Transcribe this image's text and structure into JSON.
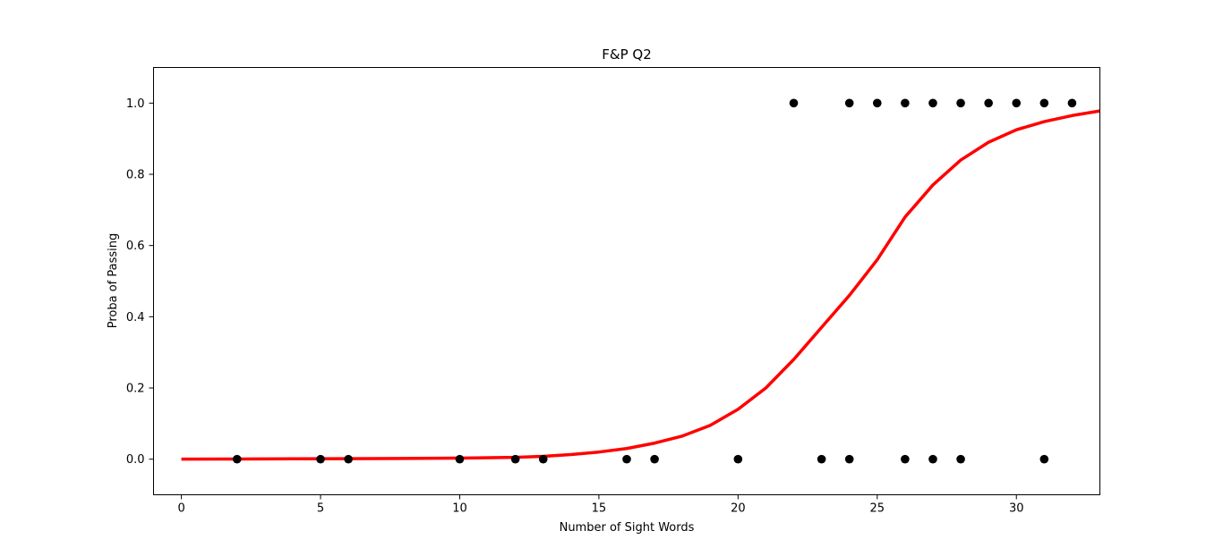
{
  "chart_data": {
    "type": "scatter",
    "title": "F&P Q2",
    "xlabel": "Number of Sight Words",
    "ylabel": "Proba of Passing",
    "xlim": [
      -1,
      33
    ],
    "ylim": [
      -0.1,
      1.1
    ],
    "xticks": [
      "0",
      "5",
      "10",
      "15",
      "20",
      "25",
      "30"
    ],
    "yticks": [
      "0.0",
      "0.2",
      "0.4",
      "0.6",
      "0.8",
      "1.0"
    ],
    "grid": false,
    "legend": "none",
    "colors": {
      "points": "#000000",
      "curve": "#ff0000"
    },
    "series": [
      {
        "kind": "scatter",
        "points": [
          [
            2,
            0
          ],
          [
            5,
            0
          ],
          [
            6,
            0
          ],
          [
            10,
            0
          ],
          [
            12,
            0
          ],
          [
            13,
            0
          ],
          [
            16,
            0
          ],
          [
            17,
            0
          ],
          [
            20,
            0
          ],
          [
            23,
            0
          ],
          [
            24,
            0
          ],
          [
            26,
            0
          ],
          [
            27,
            0
          ],
          [
            28,
            0
          ],
          [
            31,
            0
          ],
          [
            22,
            1
          ],
          [
            24,
            1
          ],
          [
            25,
            1
          ],
          [
            26,
            1
          ],
          [
            27,
            1
          ],
          [
            28,
            1
          ],
          [
            29,
            1
          ],
          [
            30,
            1
          ],
          [
            31,
            1
          ],
          [
            32,
            1
          ]
        ]
      },
      {
        "kind": "line",
        "x": [
          0,
          2,
          4,
          6,
          8,
          10,
          12,
          13,
          14,
          15,
          16,
          17,
          18,
          19,
          20,
          21,
          22,
          23,
          24,
          24.5,
          25,
          26,
          27,
          28,
          29,
          30,
          31,
          32,
          33
        ],
        "y": [
          0.0002,
          0.0005,
          0.001,
          0.0015,
          0.002,
          0.003,
          0.005,
          0.008,
          0.013,
          0.02,
          0.03,
          0.045,
          0.065,
          0.095,
          0.14,
          0.2,
          0.28,
          0.37,
          0.46,
          0.51,
          0.56,
          0.68,
          0.77,
          0.84,
          0.89,
          0.925,
          0.948,
          0.965,
          0.978
        ]
      }
    ]
  }
}
